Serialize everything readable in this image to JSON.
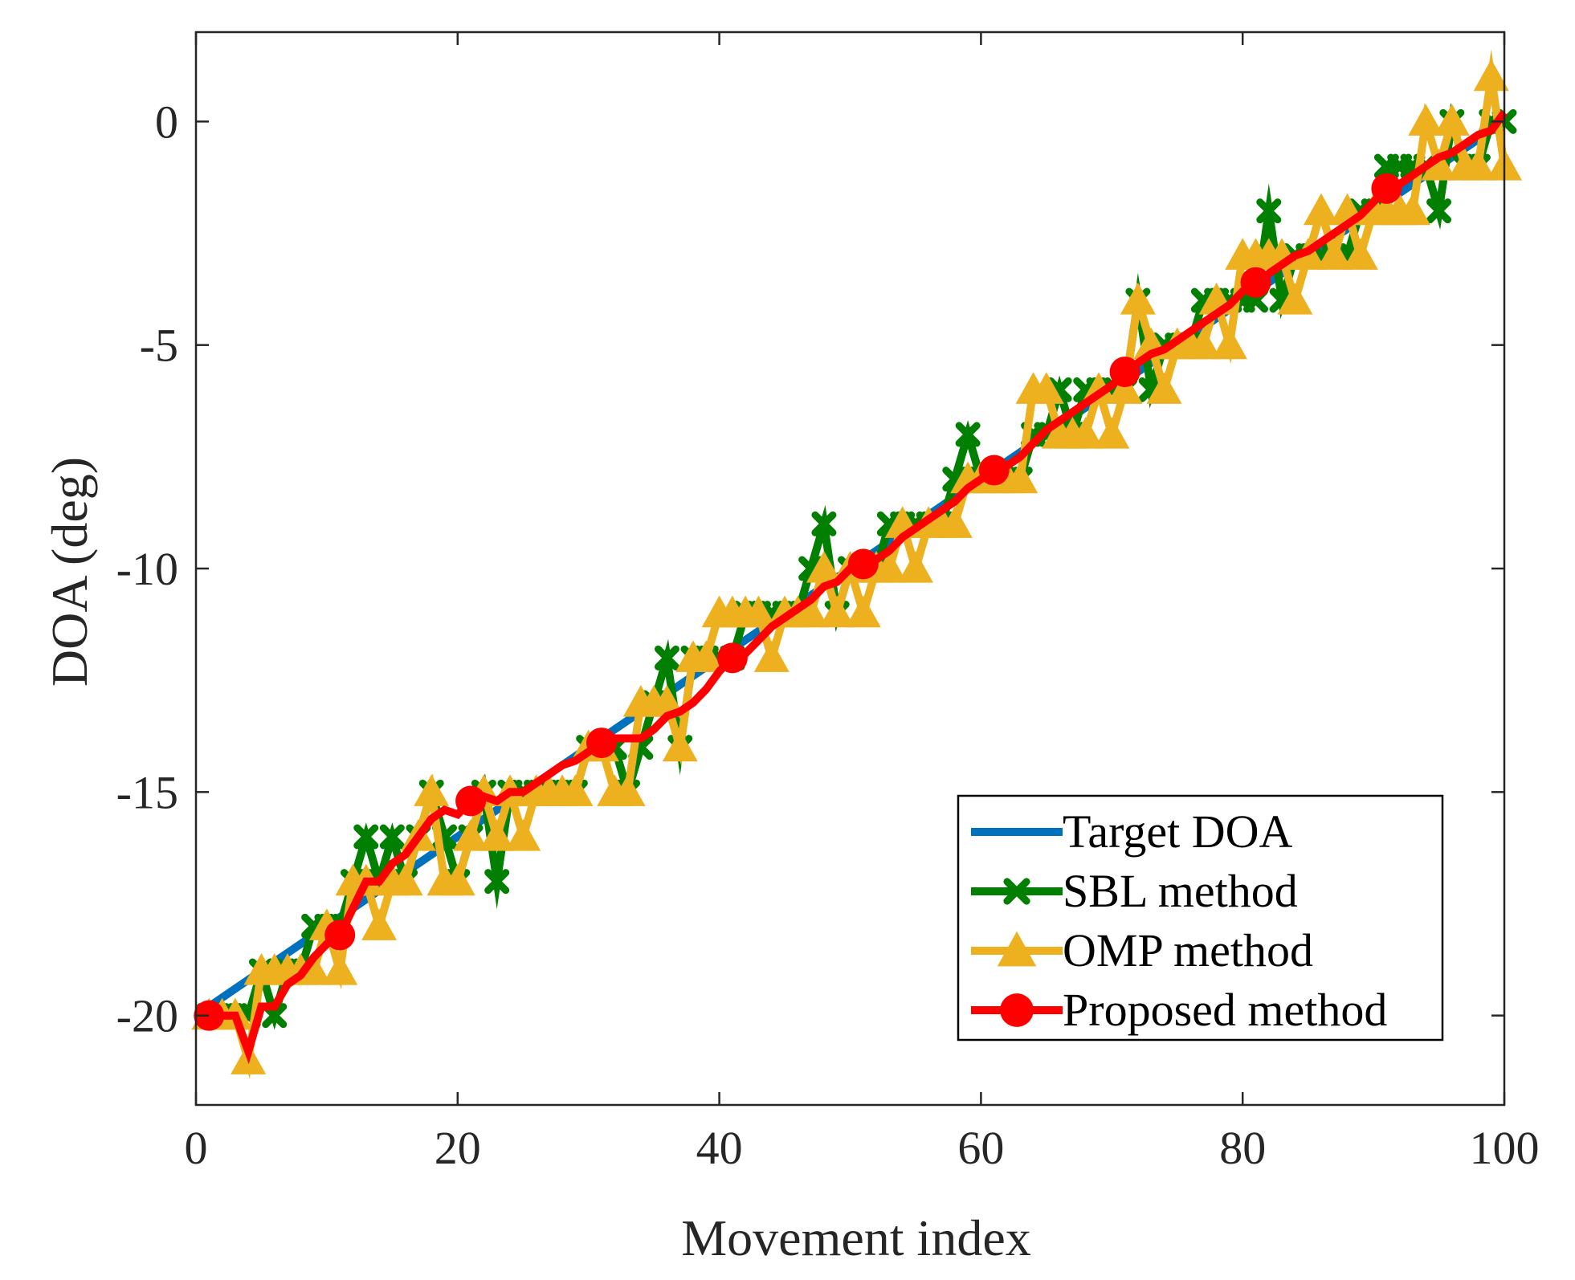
{
  "chart_data": {
    "type": "line",
    "title": "",
    "xlabel": "Movement index",
    "ylabel": "DOA (deg)",
    "xlim": [
      0,
      100
    ],
    "ylim": [
      -22,
      2
    ],
    "xticks": [
      0,
      20,
      40,
      60,
      80,
      100
    ],
    "yticks": [
      -20,
      -15,
      -10,
      -5,
      0
    ],
    "xtick_labels": [
      "0",
      "20",
      "40",
      "60",
      "80",
      "100"
    ],
    "ytick_labels": [
      "-20",
      "-15",
      "-10",
      "-5",
      "0"
    ],
    "legend_position": "bottom-right",
    "series": [
      {
        "name": "Target DOA",
        "color": "#0072BD",
        "marker": "none",
        "x": [
          1,
          100
        ],
        "y": [
          -19.8,
          0
        ]
      },
      {
        "name": "SBL method",
        "color": "#007F00",
        "marker": "x",
        "x": [
          1,
          2,
          3,
          4,
          5,
          6,
          7,
          8,
          9,
          10,
          11,
          12,
          13,
          14,
          15,
          16,
          17,
          18,
          19,
          20,
          21,
          22,
          23,
          24,
          25,
          26,
          27,
          28,
          29,
          30,
          31,
          32,
          33,
          34,
          35,
          36,
          37,
          38,
          39,
          40,
          41,
          42,
          43,
          44,
          45,
          46,
          47,
          48,
          49,
          50,
          51,
          52,
          53,
          54,
          55,
          56,
          57,
          58,
          59,
          60,
          61,
          62,
          63,
          64,
          65,
          66,
          67,
          68,
          69,
          70,
          71,
          72,
          73,
          74,
          75,
          76,
          77,
          78,
          79,
          80,
          81,
          82,
          83,
          84,
          85,
          86,
          87,
          88,
          89,
          90,
          91,
          92,
          93,
          94,
          95,
          96,
          97,
          98,
          99,
          100
        ],
        "y": [
          -20,
          -20,
          -20,
          -20,
          -19,
          -20,
          -19,
          -19,
          -18,
          -18,
          -18,
          -17,
          -16,
          -17,
          -16,
          -17,
          -16,
          -15,
          -16,
          -17,
          -16,
          -15,
          -17,
          -15,
          -15,
          -15,
          -15,
          -15,
          -15,
          -14,
          -14,
          -14,
          -15,
          -14,
          -13,
          -12,
          -14,
          -12,
          -12,
          -12,
          -12,
          -11,
          -11,
          -11,
          -11,
          -11,
          -10,
          -9,
          -11,
          -10,
          -10,
          -10,
          -9,
          -9,
          -9,
          -9,
          -9,
          -8,
          -7,
          -8,
          -8,
          -8,
          -8,
          -7,
          -7,
          -6,
          -7,
          -6,
          -6,
          -6,
          -6,
          -4,
          -6,
          -5,
          -5,
          -5,
          -4,
          -4,
          -4,
          -4,
          -4,
          -2,
          -4,
          -3,
          -3,
          -3,
          -3,
          -3,
          -2,
          -2,
          -1,
          -1,
          -1,
          -1,
          -2,
          0,
          -1,
          -1,
          0,
          0
        ]
      },
      {
        "name": "OMP method",
        "color": "#EDB120",
        "marker": "triangle",
        "x": [
          1,
          2,
          3,
          4,
          5,
          6,
          7,
          8,
          9,
          10,
          11,
          12,
          13,
          14,
          15,
          16,
          17,
          18,
          19,
          20,
          21,
          22,
          23,
          24,
          25,
          26,
          27,
          28,
          29,
          30,
          31,
          32,
          33,
          34,
          35,
          36,
          37,
          38,
          39,
          40,
          41,
          42,
          43,
          44,
          45,
          46,
          47,
          48,
          49,
          50,
          51,
          52,
          53,
          54,
          55,
          56,
          57,
          58,
          59,
          60,
          61,
          62,
          63,
          64,
          65,
          66,
          67,
          68,
          69,
          70,
          71,
          72,
          73,
          74,
          75,
          76,
          77,
          78,
          79,
          80,
          81,
          82,
          83,
          84,
          85,
          86,
          87,
          88,
          89,
          90,
          91,
          92,
          93,
          94,
          95,
          96,
          97,
          98,
          99,
          100
        ],
        "y": [
          -20,
          -20,
          -20,
          -21,
          -19,
          -19,
          -19,
          -19,
          -19,
          -18,
          -19,
          -17,
          -17,
          -18,
          -17,
          -17,
          -16,
          -15,
          -17,
          -17,
          -16,
          -15,
          -16,
          -15,
          -16,
          -15,
          -15,
          -15,
          -15,
          -14,
          -14,
          -15,
          -15,
          -13,
          -13,
          -13,
          -14,
          -12,
          -12,
          -11,
          -11,
          -11,
          -11,
          -12,
          -11,
          -11,
          -11,
          -10,
          -11,
          -10,
          -11,
          -10,
          -10,
          -9,
          -10,
          -9,
          -9,
          -9,
          -8,
          -8,
          -8,
          -8,
          -8,
          -6,
          -6,
          -7,
          -7,
          -7,
          -6,
          -7,
          -6,
          -4,
          -5,
          -6,
          -5,
          -5,
          -5,
          -4,
          -5,
          -3,
          -3,
          -3,
          -3,
          -4,
          -3,
          -2,
          -3,
          -2,
          -3,
          -2,
          -2,
          -2,
          -2,
          0,
          -1,
          0,
          -1,
          -1,
          1,
          -1
        ]
      },
      {
        "name": "Proposed method",
        "color": "#FF0000",
        "marker": "circle",
        "marker_every": 10,
        "x": [
          1,
          2,
          3,
          4,
          5,
          6,
          7,
          8,
          9,
          10,
          11,
          12,
          13,
          14,
          15,
          16,
          17,
          18,
          19,
          20,
          21,
          22,
          23,
          24,
          25,
          26,
          27,
          28,
          29,
          30,
          31,
          32,
          33,
          34,
          35,
          36,
          37,
          38,
          39,
          40,
          41,
          42,
          43,
          44,
          45,
          46,
          47,
          48,
          49,
          50,
          51,
          52,
          53,
          54,
          55,
          56,
          57,
          58,
          59,
          60,
          61,
          62,
          63,
          64,
          65,
          66,
          67,
          68,
          69,
          70,
          71,
          72,
          73,
          74,
          75,
          76,
          77,
          78,
          79,
          80,
          81,
          82,
          83,
          84,
          85,
          86,
          87,
          88,
          89,
          90,
          91,
          92,
          93,
          94,
          95,
          96,
          97,
          98,
          99,
          100
        ],
        "y": [
          -20,
          -20,
          -20,
          -20.8,
          -19.8,
          -19.8,
          -19.3,
          -19.1,
          -18.7,
          -18.4,
          -18.2,
          -17.6,
          -17,
          -17,
          -16.6,
          -16.4,
          -16,
          -15.6,
          -15.4,
          -15.5,
          -15.2,
          -15.1,
          -15.2,
          -15,
          -15,
          -14.8,
          -14.6,
          -14.4,
          -14.3,
          -14.1,
          -13.9,
          -13.8,
          -13.8,
          -13.8,
          -13.6,
          -13.3,
          -13.2,
          -13,
          -12.7,
          -12.3,
          -12,
          -11.9,
          -11.6,
          -11.3,
          -11.1,
          -10.9,
          -10.7,
          -10.4,
          -10.3,
          -10,
          -9.9,
          -9.8,
          -9.6,
          -9.3,
          -9.1,
          -8.9,
          -8.7,
          -8.5,
          -8.2,
          -8,
          -7.8,
          -7.7,
          -7.5,
          -7.2,
          -6.9,
          -6.7,
          -6.5,
          -6.3,
          -6.1,
          -5.9,
          -5.6,
          -5.4,
          -5.2,
          -5.1,
          -4.9,
          -4.7,
          -4.5,
          -4.3,
          -4.1,
          -3.8,
          -3.6,
          -3.4,
          -3.2,
          -3,
          -2.9,
          -2.7,
          -2.5,
          -2.3,
          -2.1,
          -1.8,
          -1.5,
          -1.4,
          -1.2,
          -1,
          -0.8,
          -0.7,
          -0.5,
          -0.3,
          -0.2,
          0.2
        ]
      }
    ]
  }
}
